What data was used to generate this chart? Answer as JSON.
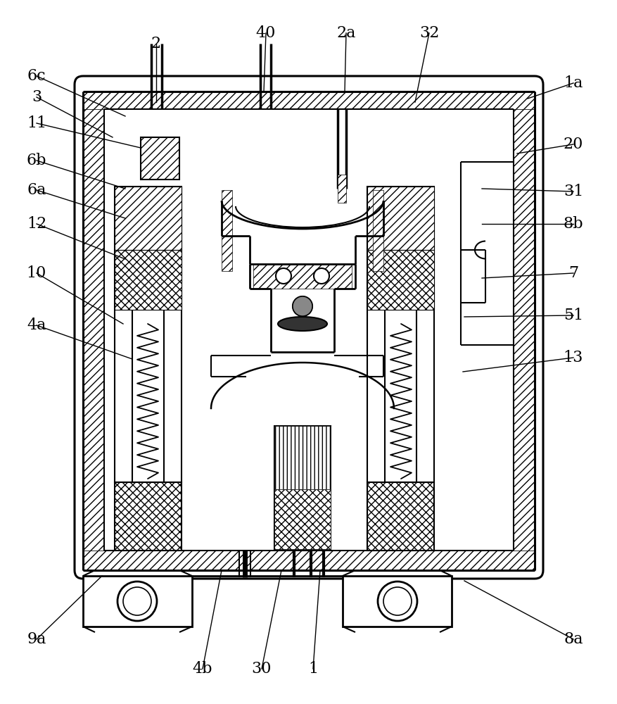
{
  "bg_color": "#ffffff",
  "line_color": "#000000",
  "figsize": [
    8.78,
    10.0
  ],
  "dpi": 100,
  "labels": [
    [
      "2",
      222,
      62
    ],
    [
      "40",
      378,
      47
    ],
    [
      "2a",
      492,
      47
    ],
    [
      "32",
      610,
      47
    ],
    [
      "6c",
      52,
      108
    ],
    [
      "3",
      52,
      138
    ],
    [
      "1a",
      815,
      118
    ],
    [
      "11",
      52,
      175
    ],
    [
      "20",
      815,
      205
    ],
    [
      "6b",
      52,
      228
    ],
    [
      "31",
      815,
      272
    ],
    [
      "6a",
      52,
      270
    ],
    [
      "8b",
      815,
      318
    ],
    [
      "12",
      52,
      318
    ],
    [
      "7",
      815,
      388
    ],
    [
      "10",
      52,
      388
    ],
    [
      "51",
      815,
      448
    ],
    [
      "4a",
      52,
      462
    ],
    [
      "13",
      815,
      508
    ],
    [
      "9a",
      52,
      908
    ],
    [
      "4b",
      288,
      950
    ],
    [
      "30",
      372,
      950
    ],
    [
      "1",
      445,
      950
    ],
    [
      "8a",
      815,
      908
    ]
  ],
  "leader_lines": [
    [
      222,
      145,
      222,
      62
    ],
    [
      375,
      130,
      378,
      47
    ],
    [
      490,
      130,
      492,
      47
    ],
    [
      590,
      145,
      610,
      47
    ],
    [
      178,
      165,
      52,
      108
    ],
    [
      160,
      195,
      52,
      138
    ],
    [
      750,
      140,
      815,
      118
    ],
    [
      200,
      210,
      52,
      175
    ],
    [
      735,
      218,
      815,
      205
    ],
    [
      178,
      268,
      52,
      228
    ],
    [
      685,
      268,
      815,
      272
    ],
    [
      178,
      310,
      52,
      270
    ],
    [
      685,
      318,
      815,
      318
    ],
    [
      178,
      368,
      52,
      318
    ],
    [
      685,
      395,
      815,
      388
    ],
    [
      175,
      460,
      52,
      388
    ],
    [
      660,
      450,
      815,
      448
    ],
    [
      188,
      510,
      52,
      462
    ],
    [
      658,
      528,
      815,
      508
    ],
    [
      145,
      818,
      52,
      908
    ],
    [
      315,
      810,
      288,
      950
    ],
    [
      400,
      810,
      372,
      950
    ],
    [
      455,
      810,
      445,
      950
    ],
    [
      660,
      825,
      815,
      908
    ]
  ]
}
